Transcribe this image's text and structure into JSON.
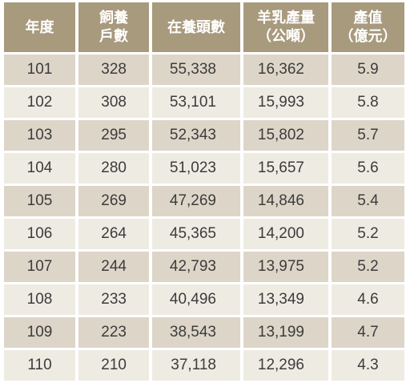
{
  "table": {
    "headers": [
      {
        "lines": [
          "年度"
        ]
      },
      {
        "lines": [
          "飼養",
          "戶數"
        ]
      },
      {
        "lines": [
          "在養頭數"
        ]
      },
      {
        "lines": [
          "羊乳產量",
          "（公噸）"
        ]
      },
      {
        "lines": [
          "產值",
          "（億元）"
        ]
      }
    ],
    "rows": [
      {
        "year": "101",
        "households": "328",
        "head_count": "55,338",
        "milk_tons": "16,362",
        "value_100m_ntd": "5.9"
      },
      {
        "year": "102",
        "households": "308",
        "head_count": "53,101",
        "milk_tons": "15,993",
        "value_100m_ntd": "5.8"
      },
      {
        "year": "103",
        "households": "295",
        "head_count": "52,343",
        "milk_tons": "15,802",
        "value_100m_ntd": "5.7"
      },
      {
        "year": "104",
        "households": "280",
        "head_count": "51,023",
        "milk_tons": "15,657",
        "value_100m_ntd": "5.6"
      },
      {
        "year": "105",
        "households": "269",
        "head_count": "47,269",
        "milk_tons": "14,846",
        "value_100m_ntd": "5.4"
      },
      {
        "year": "106",
        "households": "264",
        "head_count": "45,365",
        "milk_tons": "14,200",
        "value_100m_ntd": "5.2"
      },
      {
        "year": "107",
        "households": "244",
        "head_count": "42,793",
        "milk_tons": "13,975",
        "value_100m_ntd": "5.2"
      },
      {
        "year": "108",
        "households": "233",
        "head_count": "40,496",
        "milk_tons": "13,349",
        "value_100m_ntd": "4.6"
      },
      {
        "year": "109",
        "households": "223",
        "head_count": "38,543",
        "milk_tons": "13,199",
        "value_100m_ntd": "4.7"
      },
      {
        "year": "110",
        "households": "210",
        "head_count": "37,118",
        "milk_tons": "12,296",
        "value_100m_ntd": "4.3"
      }
    ]
  },
  "colors": {
    "header_bg": "#a89a7d",
    "row_odd_bg": "#ddd5c8",
    "row_even_bg": "#eeebe3",
    "text": "#3c3c3c"
  }
}
